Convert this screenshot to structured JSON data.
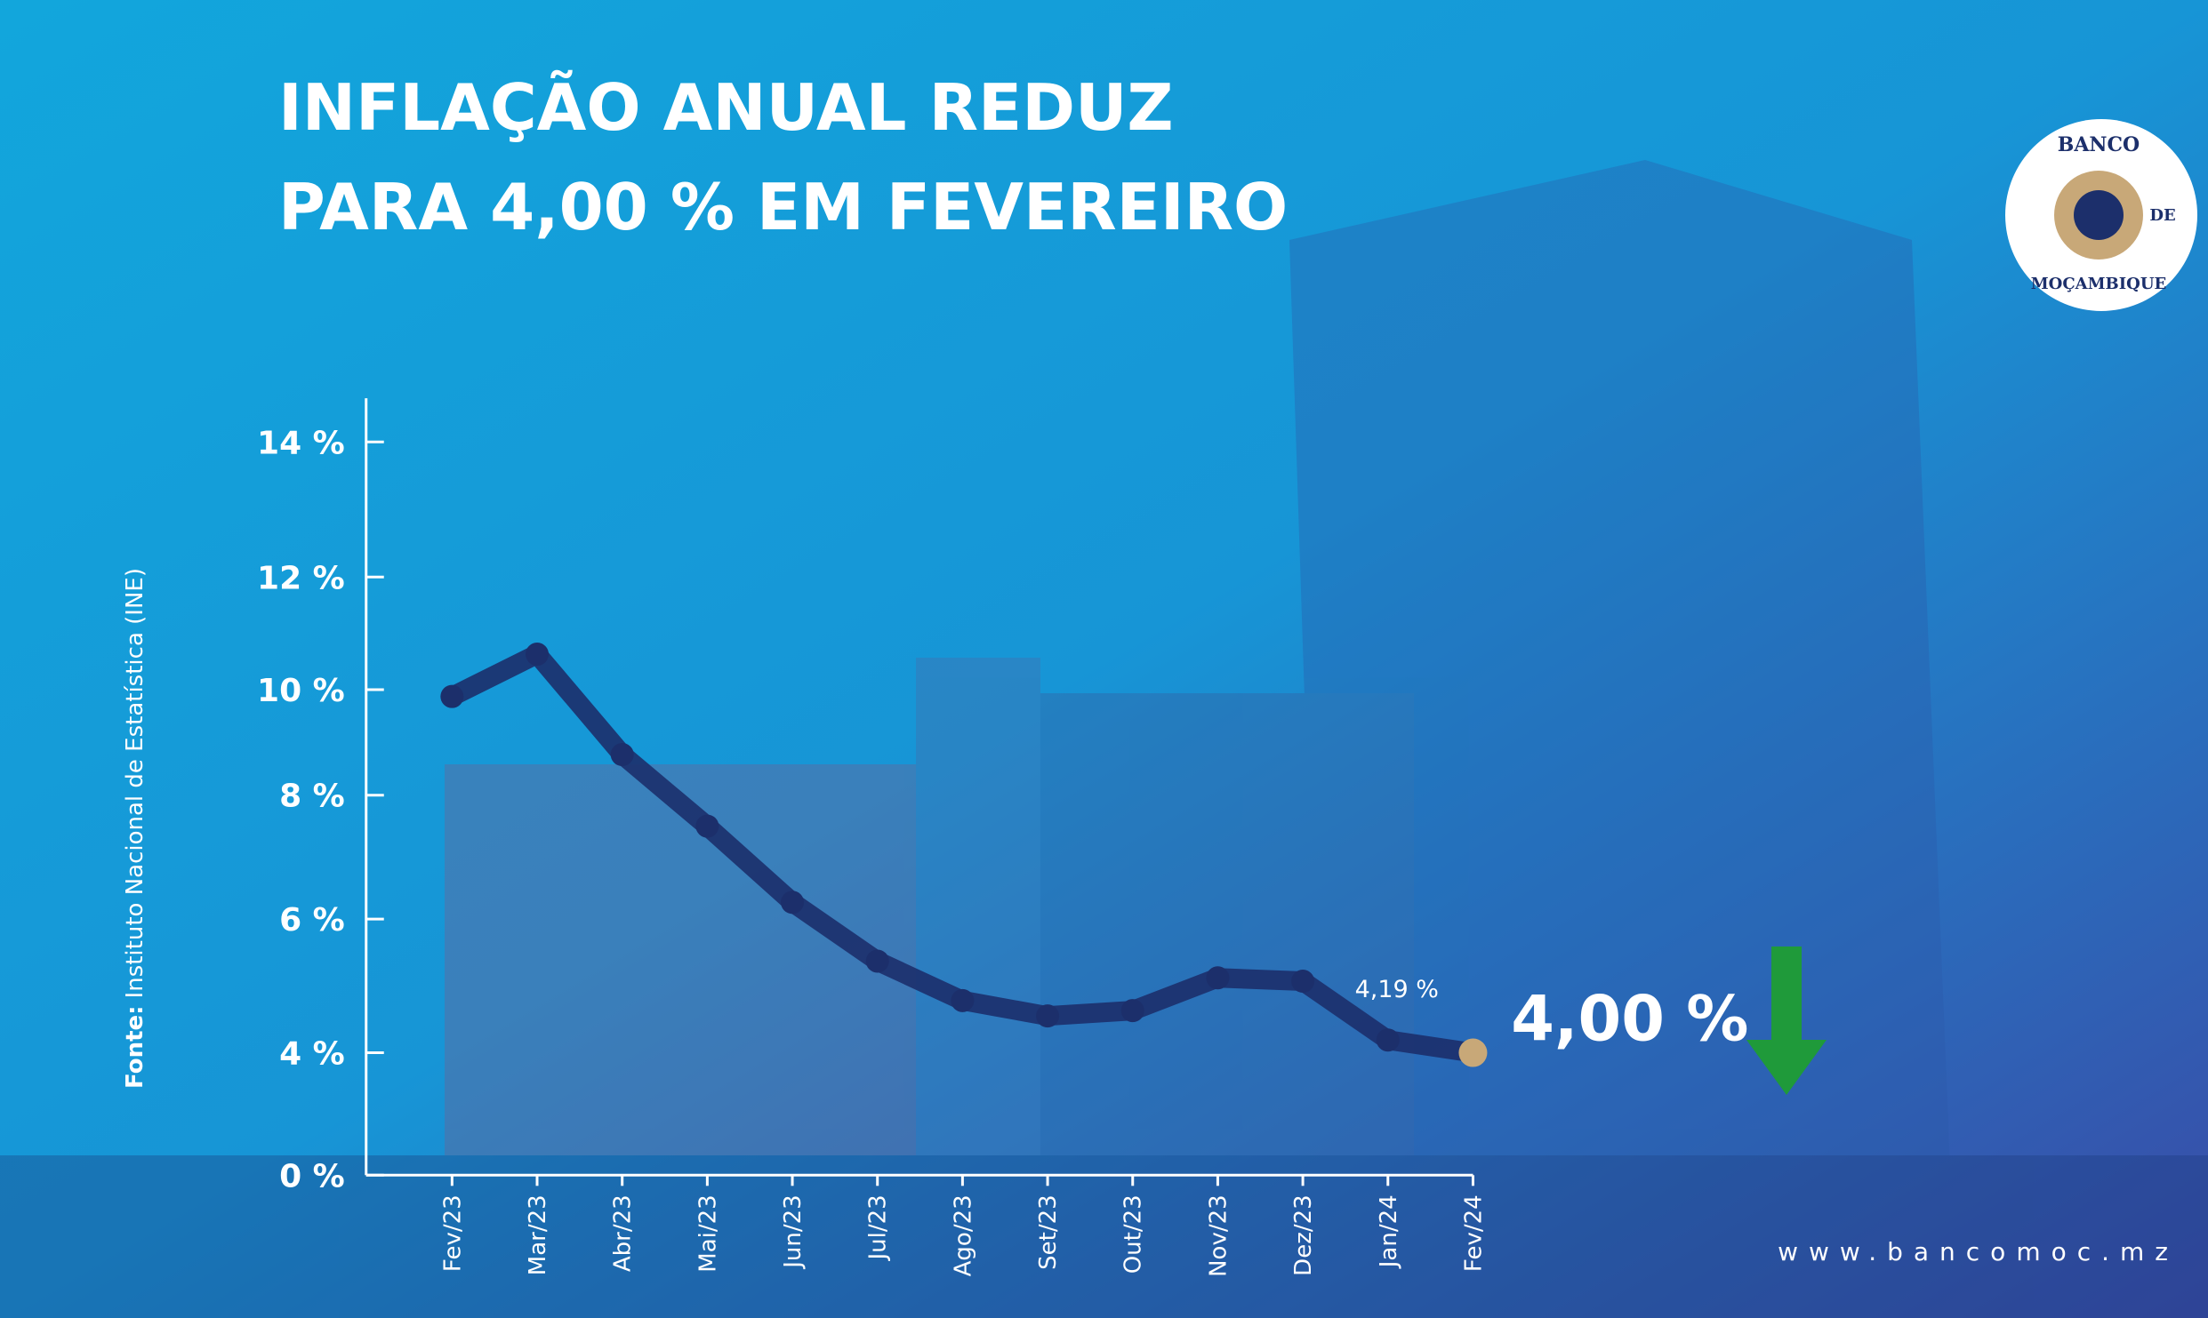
{
  "chart_data": {
    "type": "line",
    "title": [
      "INFLAÇÃO ANUAL REDUZ",
      "PARA 4,00 % EM FEVEREIRO"
    ],
    "categories": [
      "Fev/23",
      "Mar/23",
      "Abr/23",
      "Mai/23",
      "Jun/23",
      "Jul/23",
      "Ago/23",
      "Set/23",
      "Out/23",
      "Nov/23",
      "Dez/23",
      "Jan/24",
      "Fev/24"
    ],
    "series": [
      {
        "name": "Inflação anual",
        "color": "#1c2f6b",
        "values": [
          9.87,
          10.63,
          8.77,
          7.5,
          6.27,
          5.37,
          4.78,
          4.55,
          4.63,
          5.12,
          5.07,
          4.19,
          4.0
        ],
        "value_labels": [
          null,
          null,
          null,
          null,
          null,
          null,
          null,
          null,
          null,
          null,
          null,
          "4,19 %",
          "4,00 %"
        ]
      }
    ],
    "highlight_color": "#c8a878",
    "ylim": [
      0,
      14
    ],
    "yticks": [
      {
        "value": 0,
        "label": "0 %"
      },
      {
        "value": 4,
        "label": "4 %"
      },
      {
        "value": 6,
        "label": "6 %"
      },
      {
        "value": 8,
        "label": "8 %"
      },
      {
        "value": 10,
        "label": "10 %"
      },
      {
        "value": 12,
        "label": "12 %"
      },
      {
        "value": 14,
        "label": "14 %"
      }
    ],
    "source_label": "Fonte:",
    "source": "Instituto Nacional de Estatística (INE)"
  },
  "logo": {
    "top": "BANCO",
    "middle": "DE",
    "bottom": "MOÇAMBIQUE"
  },
  "website": "www.bancomoc.mz"
}
